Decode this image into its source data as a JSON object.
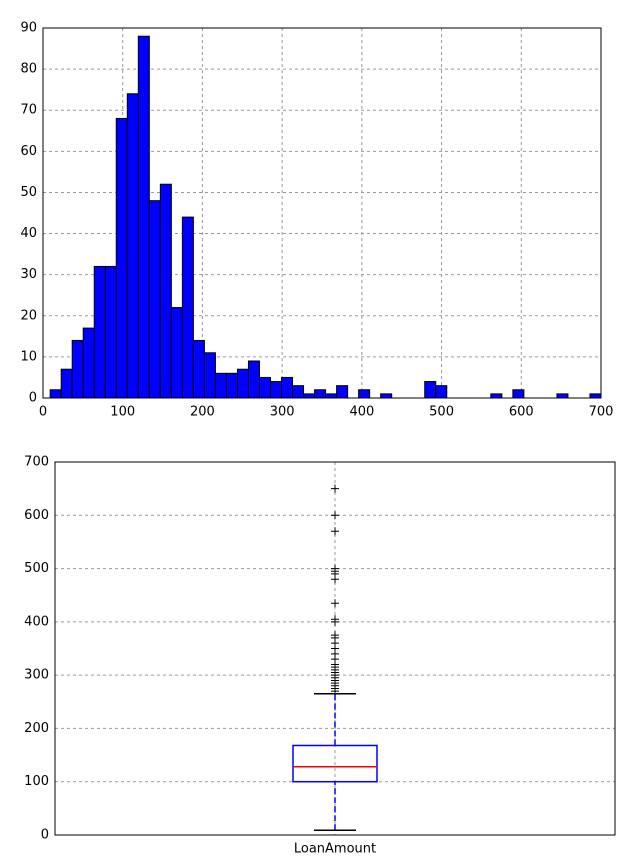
{
  "chart_data": [
    {
      "type": "histogram",
      "bins": [
        9,
        22.82,
        36.64,
        50.46,
        64.28,
        78.1,
        91.92,
        105.74,
        119.56,
        133.38,
        147.2,
        161.02,
        174.84,
        188.66,
        202.48,
        216.3,
        230.12,
        243.94,
        257.76,
        271.58,
        285.4,
        299.22,
        313.04,
        326.86,
        340.68,
        354.5,
        368.32,
        382.14,
        395.96,
        409.78,
        423.6,
        437.42,
        451.24,
        465.06,
        478.88,
        492.7,
        506.52,
        520.34,
        534.16,
        547.98,
        561.8,
        575.62,
        589.44,
        603.26,
        617.08,
        630.9,
        644.72,
        658.54,
        672.36,
        686.18,
        700
      ],
      "values": [
        2,
        7,
        14,
        17,
        32,
        32,
        68,
        74,
        88,
        48,
        52,
        22,
        44,
        14,
        11,
        6,
        6,
        7,
        9,
        5,
        4,
        5,
        3,
        1,
        2,
        1,
        3,
        0,
        2,
        0,
        1,
        0,
        0,
        0,
        4,
        3,
        0,
        0,
        0,
        0,
        1,
        0,
        2,
        0,
        0,
        0,
        1,
        0,
        0,
        1
      ],
      "color": "#0000ff",
      "xlim": [
        0,
        700
      ],
      "xticks": [
        0,
        100,
        200,
        300,
        400,
        500,
        600,
        700
      ],
      "ylim": [
        0,
        90
      ],
      "yticks": [
        0,
        10,
        20,
        30,
        40,
        50,
        60,
        70,
        80,
        90
      ],
      "grid": true
    },
    {
      "type": "box",
      "categories": [
        "LoanAmount"
      ],
      "whislo": 9,
      "q1": 100,
      "median": 128,
      "q3": 168,
      "whishi": 265,
      "fliers": [
        270,
        275,
        280,
        285,
        290,
        295,
        300,
        305,
        310,
        315,
        320,
        330,
        340,
        350,
        360,
        370,
        375,
        400,
        405,
        435,
        480,
        490,
        495,
        500,
        570,
        600,
        650
      ],
      "color": "#0000ff",
      "median_color": "#ff0000",
      "ylim": [
        0,
        700
      ],
      "yticks": [
        0,
        100,
        200,
        300,
        400,
        500,
        600,
        700
      ],
      "grid": true
    }
  ]
}
